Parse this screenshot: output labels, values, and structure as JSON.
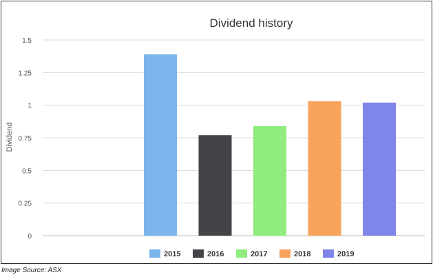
{
  "chart_data": {
    "type": "bar",
    "title": "Dividend history",
    "xlabel": "",
    "ylabel": "Dividend",
    "categories": [
      "2015",
      "2016",
      "2017",
      "2018",
      "2019"
    ],
    "values": [
      1.39,
      0.77,
      0.84,
      1.03,
      1.02
    ],
    "colors": [
      "#7cb5ec",
      "#434348",
      "#90ed7d",
      "#f7a35c",
      "#8085e9"
    ],
    "ylim": [
      0,
      1.5
    ],
    "yticks": [
      0,
      0.25,
      0.5,
      0.75,
      1,
      1.25,
      1.5
    ],
    "ytick_labels": [
      "0",
      "0.25",
      "0.5",
      "0.75",
      "1",
      "1.25",
      "1.5"
    ],
    "grid": true,
    "legend_position": "bottom"
  },
  "footer": {
    "source": "Image Source: ASX"
  }
}
